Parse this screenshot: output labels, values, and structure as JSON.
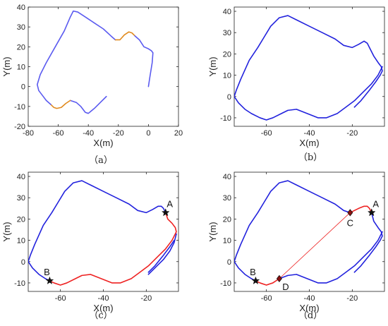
{
  "chart_data": [
    {
      "panel": "a",
      "caption": "（a）",
      "type": "line",
      "xlabel": "X(m)",
      "ylabel": "Y(m)",
      "xlim": [
        -80,
        20
      ],
      "ylim": [
        -20,
        40
      ],
      "xticks": [
        -80,
        -60,
        -40,
        -20,
        0,
        20
      ],
      "yticks": [
        -20,
        -10,
        0,
        10,
        20,
        30,
        40
      ],
      "series": [
        {
          "color": "#5b5bf0",
          "x": [
            -28,
            -32,
            -36,
            -40,
            -42,
            -45,
            -48,
            -52
          ],
          "y": [
            -5,
            -8,
            -11,
            -13.5,
            -13,
            -10,
            -8,
            -7
          ]
        },
        {
          "color": "#e08a1e",
          "x": [
            -52,
            -55,
            -58,
            -61,
            -63,
            -65
          ],
          "y": [
            -7,
            -8.5,
            -10.5,
            -11,
            -10.5,
            -9
          ]
        },
        {
          "color": "#5b5bf0",
          "x": [
            -65,
            -68,
            -71,
            -73,
            -74,
            -72,
            -68,
            -62,
            -56,
            -52,
            -50,
            -47,
            -42,
            -36,
            -30,
            -25,
            -22
          ],
          "y": [
            -9,
            -7,
            -4,
            -2,
            1,
            6,
            12,
            20,
            28,
            35,
            38,
            37.5,
            35,
            32,
            29,
            25.5,
            23.5
          ]
        },
        {
          "color": "#e08a1e",
          "x": [
            -22,
            -19,
            -16,
            -13,
            -11,
            -9
          ],
          "y": [
            23.5,
            23.5,
            26,
            27.5,
            27,
            25.5
          ]
        },
        {
          "color": "#5b5bf0",
          "x": [
            -9,
            -6,
            -3,
            0,
            2,
            3,
            2.5,
            1,
            0
          ],
          "y": [
            25.5,
            23.5,
            20,
            19,
            18,
            17,
            12,
            5,
            0
          ]
        }
      ]
    },
    {
      "panel": "b",
      "caption": "（b）",
      "type": "line",
      "xlabel": "X(m)",
      "ylabel": "Y(m)",
      "xlim": [
        -75,
        -5
      ],
      "ylim": [
        -14,
        42
      ],
      "xticks": [
        -60,
        -40,
        -20
      ],
      "yticks": [
        -10,
        0,
        10,
        20,
        30,
        40
      ],
      "series": [
        {
          "color": "#2222dd",
          "x": [
            -19,
            -16,
            -12,
            -9,
            -7,
            -6,
            -6.5,
            -8,
            -10,
            -12,
            -13,
            -14.5,
            -17,
            -20,
            -24,
            -28,
            -34,
            -40,
            -46,
            -50,
            -54,
            -58,
            -61,
            -64,
            -68,
            -72,
            -74,
            -75
          ],
          "y": [
            -5,
            -2,
            3,
            7,
            10,
            12,
            14,
            16,
            19,
            23,
            25,
            26,
            24.5,
            23,
            24,
            27,
            30,
            33,
            36,
            38,
            37,
            33,
            28,
            23,
            17,
            8,
            3,
            0
          ]
        },
        {
          "color": "#2222dd",
          "x": [
            -75,
            -73,
            -70,
            -67,
            -63,
            -60,
            -57,
            -53,
            -50,
            -46,
            -41,
            -36,
            -32,
            -27,
            -23,
            -19,
            -15,
            -11,
            -8,
            -6
          ],
          "y": [
            0,
            -3,
            -6,
            -8,
            -10,
            -11,
            -10,
            -8,
            -6.5,
            -6,
            -8,
            -10,
            -10,
            -8,
            -5,
            -2,
            2,
            6,
            10,
            14
          ]
        }
      ]
    },
    {
      "panel": "c",
      "caption": "（c）",
      "type": "line",
      "xlabel": "X(m)",
      "ylabel": "Y(m)",
      "xlim": [
        -75,
        -5
      ],
      "ylim": [
        -14,
        42
      ],
      "xticks": [
        -60,
        -40,
        -20
      ],
      "yticks": [
        -10,
        0,
        10,
        20,
        30,
        40
      ],
      "series": [
        {
          "color": "#2222dd",
          "x": [
            -19,
            -16,
            -12,
            -9,
            -7
          ],
          "y": [
            -5,
            -2,
            3,
            7,
            10
          ]
        },
        {
          "color": "#2222dd",
          "x": [
            -11,
            -12,
            -13,
            -14.5,
            -17,
            -20,
            -24,
            -28,
            -34,
            -40,
            -46,
            -50,
            -54,
            -58,
            -61,
            -64,
            -68,
            -72,
            -74,
            -75
          ],
          "y": [
            23,
            25,
            26,
            26,
            24.5,
            23,
            24,
            27,
            30,
            33,
            36,
            38,
            37,
            33,
            28,
            23,
            17,
            8,
            3,
            0
          ]
        },
        {
          "color": "#2222dd",
          "x": [
            -75,
            -73,
            -70,
            -67,
            -65
          ],
          "y": [
            0,
            -3,
            -6,
            -8,
            -9
          ]
        },
        {
          "color": "#2222dd",
          "x": [
            -19,
            -16,
            -12,
            -9,
            -7,
            -6
          ],
          "y": [
            -6,
            -3,
            1,
            5,
            9,
            13
          ]
        },
        {
          "color": "#ee2222",
          "x": [
            -65,
            -63,
            -60,
            -57,
            -53,
            -50,
            -46,
            -41,
            -36,
            -32,
            -27,
            -23,
            -19,
            -15,
            -11,
            -8,
            -6,
            -6.5,
            -8,
            -10,
            -11
          ],
          "y": [
            -9,
            -10,
            -11,
            -10,
            -8,
            -6.5,
            -6,
            -8,
            -10,
            -10,
            -8,
            -5,
            -2,
            2,
            6,
            10,
            14,
            16,
            18,
            20,
            23
          ]
        }
      ],
      "points": [
        {
          "label": "A",
          "x": -11,
          "y": 23,
          "marker": "star"
        },
        {
          "label": "B",
          "x": -65,
          "y": -9,
          "marker": "star"
        }
      ]
    },
    {
      "panel": "d",
      "caption": "（d）",
      "type": "line",
      "xlabel": "X(m)",
      "ylabel": "Y(m)",
      "xlim": [
        -75,
        -5
      ],
      "ylim": [
        -14,
        42
      ],
      "xticks": [
        -60,
        -40,
        -20
      ],
      "yticks": [
        -10,
        0,
        10,
        20,
        30,
        40
      ],
      "series": [
        {
          "color": "#2222dd",
          "x": [
            -19,
            -16,
            -12,
            -9,
            -7,
            -6,
            -6.5,
            -8,
            -10,
            -11
          ],
          "y": [
            -5,
            -2,
            3,
            7,
            10,
            12,
            14,
            16,
            19,
            23
          ]
        },
        {
          "color": "#ee2222",
          "x": [
            -11,
            -12,
            -13,
            -14.5,
            -17,
            -19,
            -21
          ],
          "y": [
            23,
            25,
            26,
            26,
            25,
            24,
            23
          ]
        },
        {
          "color": "#2222dd",
          "x": [
            -21,
            -24,
            -28,
            -34,
            -40,
            -46,
            -50,
            -54,
            -58,
            -61,
            -64,
            -68,
            -72,
            -74,
            -75
          ],
          "y": [
            23,
            24,
            27,
            30,
            33,
            36,
            38,
            37,
            33,
            28,
            23,
            17,
            8,
            3,
            0
          ]
        },
        {
          "color": "#2222dd",
          "x": [
            -75,
            -73,
            -70,
            -67,
            -65
          ],
          "y": [
            0,
            -3,
            -6,
            -8,
            -9
          ]
        },
        {
          "color": "#ee2222",
          "x": [
            -65,
            -63,
            -60,
            -57,
            -54
          ],
          "y": [
            -9,
            -10,
            -11,
            -10,
            -8
          ]
        },
        {
          "color": "#2222dd",
          "x": [
            -54,
            -50,
            -46,
            -41,
            -36,
            -32,
            -27,
            -23,
            -19,
            -15,
            -11,
            -8,
            -6
          ],
          "y": [
            -8,
            -6.5,
            -6,
            -8,
            -10,
            -10,
            -8,
            -5,
            -2,
            2,
            6,
            10,
            14
          ]
        },
        {
          "color": "#ee2222",
          "width": 0.8,
          "x": [
            -54,
            -21
          ],
          "y": [
            -8,
            23
          ]
        }
      ],
      "points": [
        {
          "label": "A",
          "x": -11,
          "y": 23,
          "marker": "star"
        },
        {
          "label": "B",
          "x": -65,
          "y": -9,
          "marker": "star"
        },
        {
          "label": "C",
          "x": -21,
          "y": 23,
          "marker": "diamond"
        },
        {
          "label": "D",
          "x": -54,
          "y": -8,
          "marker": "diamond"
        }
      ]
    }
  ]
}
